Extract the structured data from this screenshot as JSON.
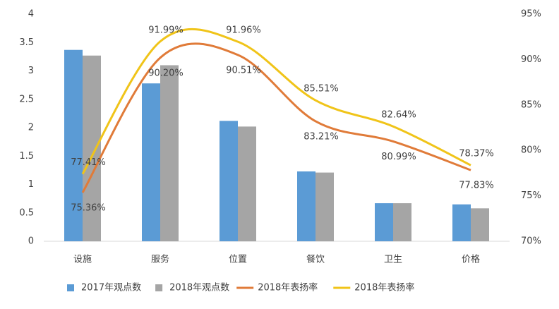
{
  "chart_data": {
    "type": "bar-line",
    "categories": [
      "设施",
      "服务",
      "位置",
      "餐饮",
      "卫生",
      "价格"
    ],
    "series": [
      {
        "name": "2017年观点数",
        "type": "bar",
        "color": "#5b9bd5",
        "values": [
          3.37,
          2.78,
          2.12,
          1.23,
          0.67,
          0.65
        ]
      },
      {
        "name": "2018年观点数",
        "type": "bar",
        "color": "#a5a5a5",
        "values": [
          3.27,
          3.1,
          2.02,
          1.21,
          0.67,
          0.58
        ]
      },
      {
        "name": "2018年表扬率",
        "type": "line",
        "axis": "y2",
        "color": "#e07b39",
        "values": [
          75.36,
          90.2,
          90.51,
          83.21,
          80.99,
          77.83
        ],
        "value_labels": [
          "75.36%",
          "90.20%",
          "90.51%",
          "83.21%",
          "80.99%",
          "77.83%"
        ]
      },
      {
        "name": "2018年表扬率",
        "type": "line",
        "axis": "y2",
        "color": "#f0c419",
        "values": [
          77.41,
          91.99,
          91.96,
          85.51,
          82.64,
          78.37
        ],
        "value_labels": [
          "77.41%",
          "91.99%",
          "91.96%",
          "85.51%",
          "82.64%",
          "78.37%"
        ]
      }
    ],
    "ylim": [
      0,
      4
    ],
    "yticks": [
      0,
      0.5,
      1,
      1.5,
      2,
      2.5,
      3,
      3.5,
      4
    ],
    "y2lim": [
      70,
      95
    ],
    "y2ticks": [
      {
        "value": 70,
        "label": "70%"
      },
      {
        "value": 75,
        "label": "75%"
      },
      {
        "value": 80,
        "label": "80%"
      },
      {
        "value": 85,
        "label": "85%"
      },
      {
        "value": 90,
        "label": "90%"
      },
      {
        "value": 95,
        "label": "95%"
      }
    ],
    "legend": "bottom"
  }
}
